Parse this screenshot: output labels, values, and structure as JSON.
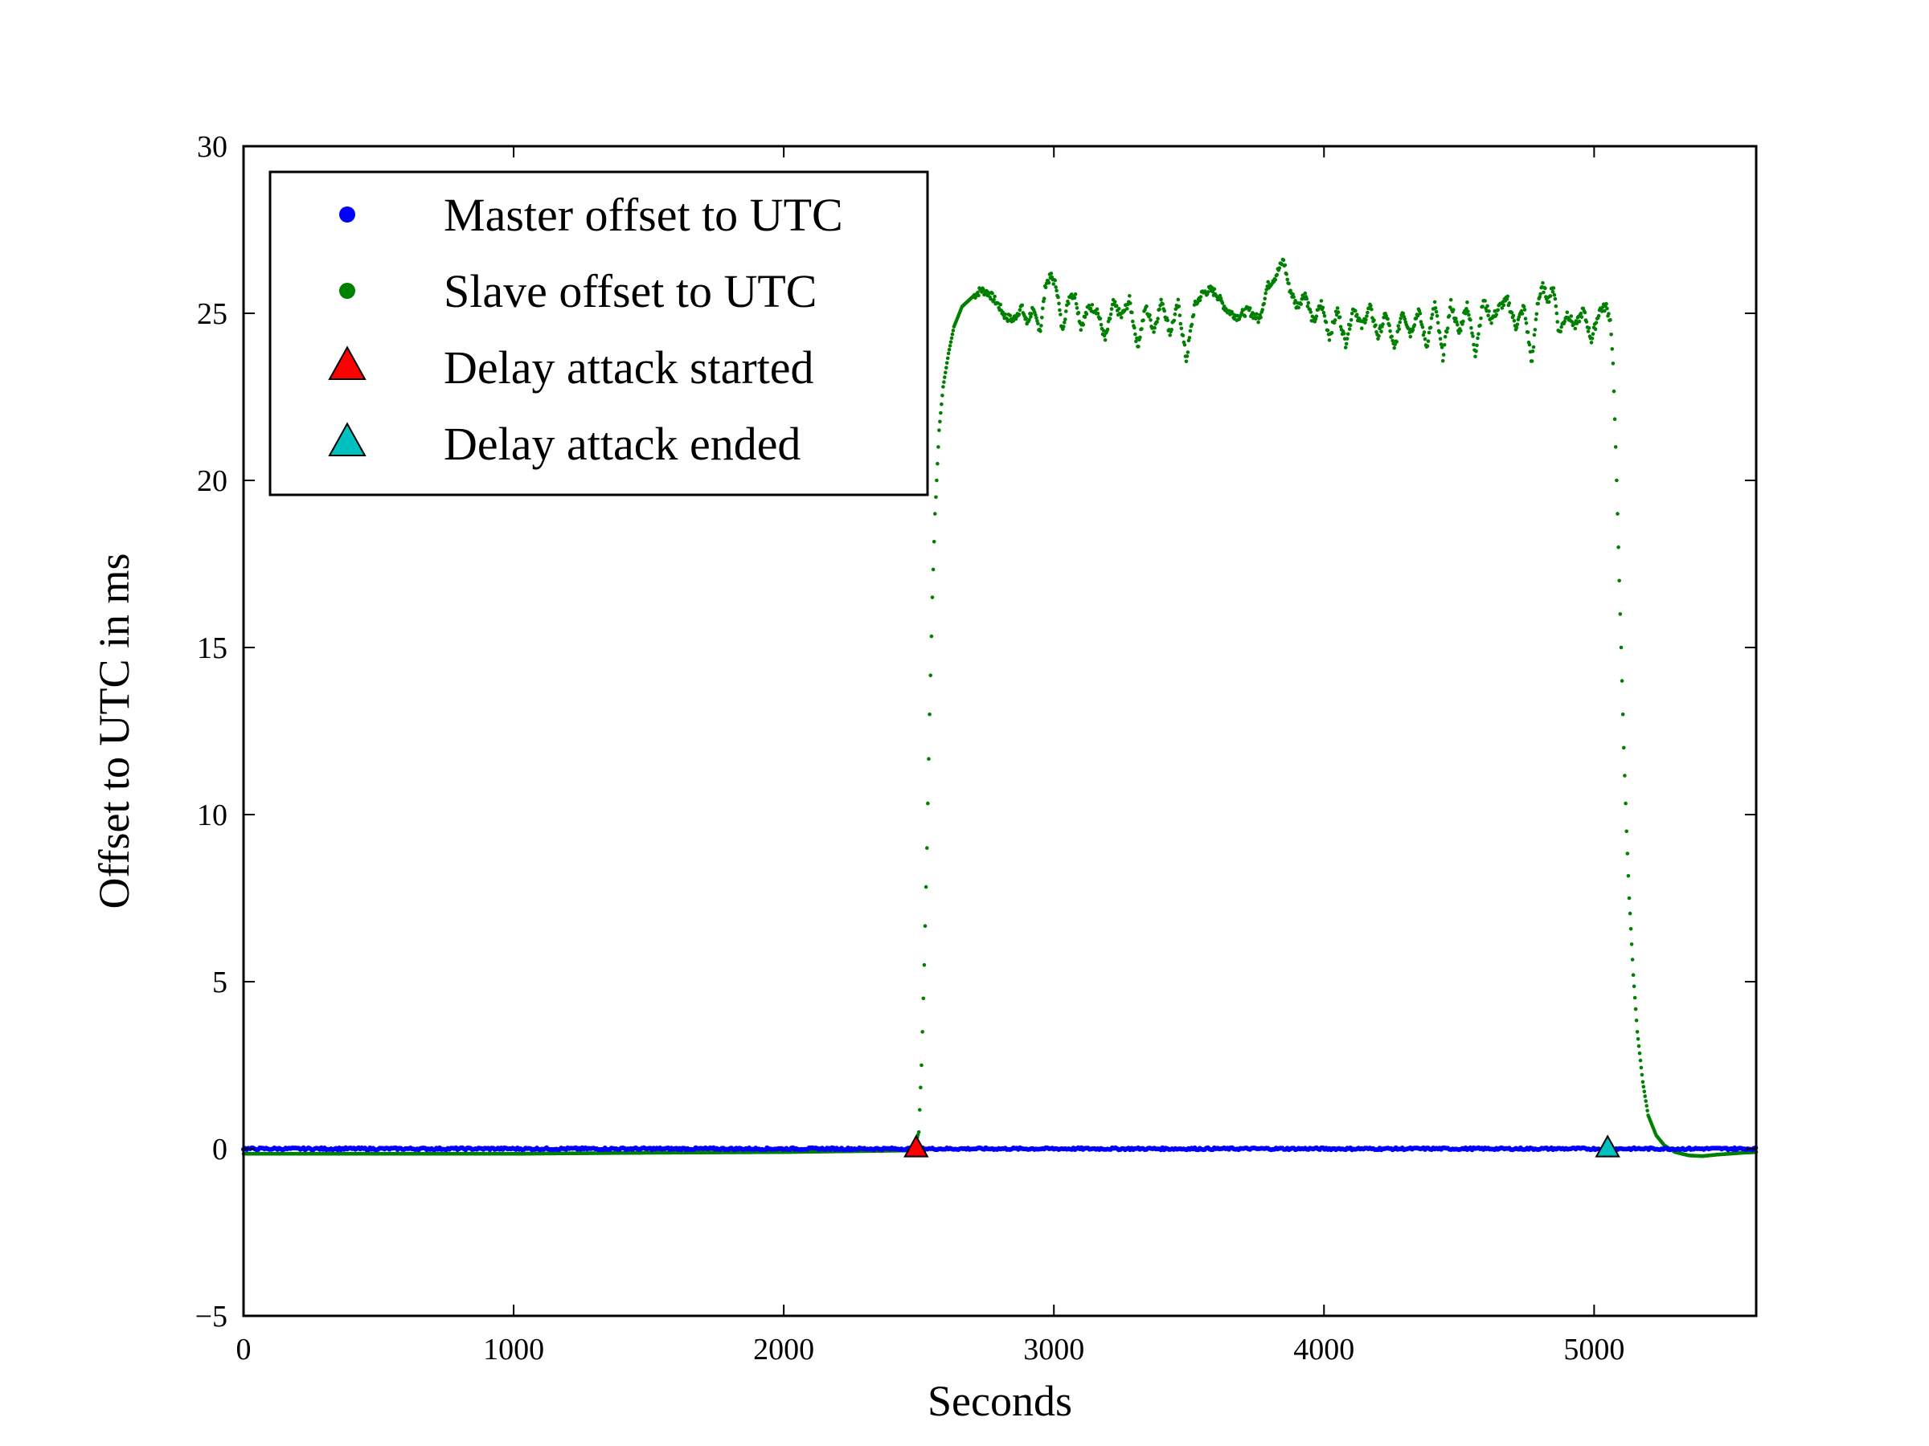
{
  "chart_data": {
    "type": "scatter",
    "title": "",
    "xlabel": "Seconds",
    "ylabel": "Offset to UTC in ms",
    "xlim": [
      0,
      5600
    ],
    "ylim": [
      -5,
      30
    ],
    "x_ticks": [
      0,
      1000,
      2000,
      3000,
      4000,
      5000
    ],
    "y_ticks": [
      -5,
      0,
      5,
      10,
      15,
      20,
      25,
      30
    ],
    "x_tick_labels": [
      "0",
      "1000",
      "2000",
      "3000",
      "4000",
      "5000"
    ],
    "y_tick_labels": [
      "−5",
      "0",
      "5",
      "10",
      "15",
      "20",
      "25",
      "30"
    ],
    "grid": false,
    "legend_position": "top-left",
    "series": [
      {
        "name": "Master offset to UTC",
        "marker": "dot",
        "color": "#0000ff",
        "points": [
          [
            0,
            0.0
          ],
          [
            5600,
            0.0
          ]
        ]
      },
      {
        "name": "Slave offset to UTC",
        "marker": "dot",
        "color": "#008000",
        "points": [
          [
            0,
            -0.15
          ],
          [
            500,
            -0.15
          ],
          [
            1000,
            -0.15
          ],
          [
            1500,
            -0.12
          ],
          [
            2000,
            -0.1
          ],
          [
            2480,
            -0.05
          ],
          [
            2500,
            0.5
          ],
          [
            2510,
            2.5
          ],
          [
            2520,
            5.5
          ],
          [
            2530,
            9.0
          ],
          [
            2540,
            13.0
          ],
          [
            2550,
            16.5
          ],
          [
            2560,
            19.0
          ],
          [
            2575,
            21.5
          ],
          [
            2590,
            22.8
          ],
          [
            2610,
            23.8
          ],
          [
            2630,
            24.6
          ],
          [
            2660,
            25.2
          ],
          [
            2700,
            25.5
          ],
          [
            2730,
            25.7
          ],
          [
            2760,
            25.6
          ],
          [
            2790,
            25.3
          ],
          [
            2820,
            24.9
          ],
          [
            2850,
            24.8
          ],
          [
            2880,
            25.2
          ],
          [
            2900,
            24.7
          ],
          [
            2920,
            25.1
          ],
          [
            2950,
            24.5
          ],
          [
            2970,
            25.9
          ],
          [
            2990,
            26.1
          ],
          [
            3010,
            25.8
          ],
          [
            3030,
            24.5
          ],
          [
            3060,
            25.6
          ],
          [
            3080,
            25.5
          ],
          [
            3100,
            24.6
          ],
          [
            3130,
            25.2
          ],
          [
            3160,
            25.1
          ],
          [
            3190,
            24.2
          ],
          [
            3220,
            25.3
          ],
          [
            3250,
            24.9
          ],
          [
            3280,
            25.4
          ],
          [
            3310,
            24.0
          ],
          [
            3340,
            25.2
          ],
          [
            3370,
            24.5
          ],
          [
            3400,
            25.4
          ],
          [
            3430,
            24.4
          ],
          [
            3460,
            25.3
          ],
          [
            3490,
            23.6
          ],
          [
            3520,
            25.2
          ],
          [
            3550,
            25.6
          ],
          [
            3580,
            25.7
          ],
          [
            3600,
            25.6
          ],
          [
            3640,
            25.1
          ],
          [
            3680,
            24.9
          ],
          [
            3720,
            25.1
          ],
          [
            3760,
            24.8
          ],
          [
            3790,
            25.8
          ],
          [
            3820,
            26.1
          ],
          [
            3850,
            26.6
          ],
          [
            3870,
            25.8
          ],
          [
            3900,
            25.2
          ],
          [
            3930,
            25.6
          ],
          [
            3960,
            24.7
          ],
          [
            3990,
            25.3
          ],
          [
            4020,
            24.3
          ],
          [
            4050,
            25.1
          ],
          [
            4080,
            24.1
          ],
          [
            4110,
            25.2
          ],
          [
            4140,
            24.6
          ],
          [
            4170,
            25.2
          ],
          [
            4200,
            24.3
          ],
          [
            4230,
            25.0
          ],
          [
            4260,
            23.9
          ],
          [
            4290,
            25.1
          ],
          [
            4320,
            24.4
          ],
          [
            4350,
            25.1
          ],
          [
            4380,
            24.0
          ],
          [
            4410,
            25.3
          ],
          [
            4440,
            23.7
          ],
          [
            4470,
            25.3
          ],
          [
            4500,
            24.4
          ],
          [
            4530,
            25.3
          ],
          [
            4560,
            23.8
          ],
          [
            4590,
            25.4
          ],
          [
            4620,
            24.8
          ],
          [
            4650,
            25.2
          ],
          [
            4680,
            25.4
          ],
          [
            4710,
            24.6
          ],
          [
            4740,
            25.2
          ],
          [
            4770,
            23.5
          ],
          [
            4790,
            25.3
          ],
          [
            4810,
            25.8
          ],
          [
            4830,
            25.4
          ],
          [
            4850,
            25.8
          ],
          [
            4870,
            24.4
          ],
          [
            4900,
            25.0
          ],
          [
            4930,
            24.6
          ],
          [
            4960,
            25.1
          ],
          [
            4990,
            24.2
          ],
          [
            5020,
            25.1
          ],
          [
            5045,
            25.2
          ],
          [
            5060,
            24.8
          ],
          [
            5070,
            23.5
          ],
          [
            5080,
            21.0
          ],
          [
            5090,
            18.0
          ],
          [
            5100,
            15.0
          ],
          [
            5110,
            12.0
          ],
          [
            5120,
            9.5
          ],
          [
            5130,
            7.5
          ],
          [
            5145,
            5.2
          ],
          [
            5160,
            3.5
          ],
          [
            5180,
            2.0
          ],
          [
            5200,
            1.0
          ],
          [
            5230,
            0.4
          ],
          [
            5260,
            0.1
          ],
          [
            5300,
            -0.1
          ],
          [
            5350,
            -0.2
          ],
          [
            5400,
            -0.22
          ],
          [
            5450,
            -0.18
          ],
          [
            5500,
            -0.15
          ],
          [
            5550,
            -0.12
          ],
          [
            5600,
            -0.1
          ]
        ]
      },
      {
        "name": "Delay attack started",
        "marker": "triangle",
        "color": "#ff0000",
        "points": [
          [
            2490,
            0.0
          ]
        ]
      },
      {
        "name": "Delay attack ended",
        "marker": "triangle",
        "color": "#00bfbf",
        "points": [
          [
            5050,
            0.0
          ]
        ]
      }
    ]
  }
}
